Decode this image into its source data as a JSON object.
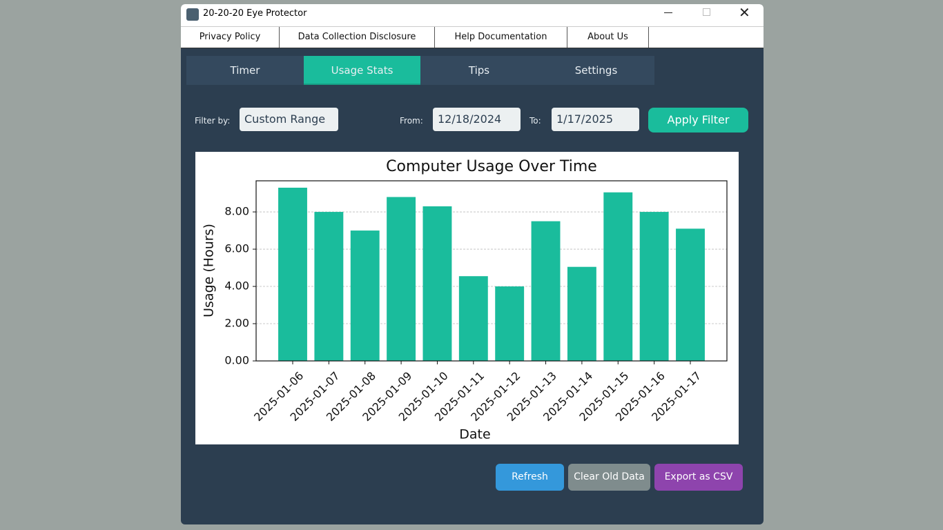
{
  "window": {
    "title": "20-20-20 Eye Protector"
  },
  "menu": [
    "Privacy Policy",
    "Data Collection Disclosure",
    "Help Documentation",
    "About Us"
  ],
  "tabs": [
    "Timer",
    "Usage Stats",
    "Tips",
    "Settings"
  ],
  "filter": {
    "label": "Filter by:",
    "mode": "Custom Range",
    "from_label": "From:",
    "from": "12/18/2024",
    "to_label": "To:",
    "to": "1/17/2025",
    "apply": "Apply Filter"
  },
  "chart_data": {
    "type": "bar",
    "title": "Computer Usage Over Time",
    "x_label": "Date",
    "y_label": "Usage (Hours)",
    "categories": [
      "2025-01-06",
      "2025-01-07",
      "2025-01-08",
      "2025-01-09",
      "2025-01-10",
      "2025-01-11",
      "2025-01-12",
      "2025-01-13",
      "2025-01-14",
      "2025-01-15",
      "2025-01-16",
      "2025-01-17"
    ],
    "values": [
      9.3,
      8.0,
      7.0,
      8.8,
      8.3,
      4.55,
      4.0,
      7.5,
      5.05,
      9.05,
      8.0,
      7.1
    ],
    "color": "#1abc9c",
    "ylim": [
      0,
      9.67
    ],
    "yticks": [
      {
        "value": 0,
        "label": "0.00"
      },
      {
        "value": 2,
        "label": "2.00"
      },
      {
        "value": 4,
        "label": "4.00"
      },
      {
        "value": 6,
        "label": "6.00"
      },
      {
        "value": 8,
        "label": "8.00"
      }
    ],
    "grid": true
  },
  "buttons": [
    "Refresh",
    "Clear Old Data",
    "Export as CSV"
  ]
}
